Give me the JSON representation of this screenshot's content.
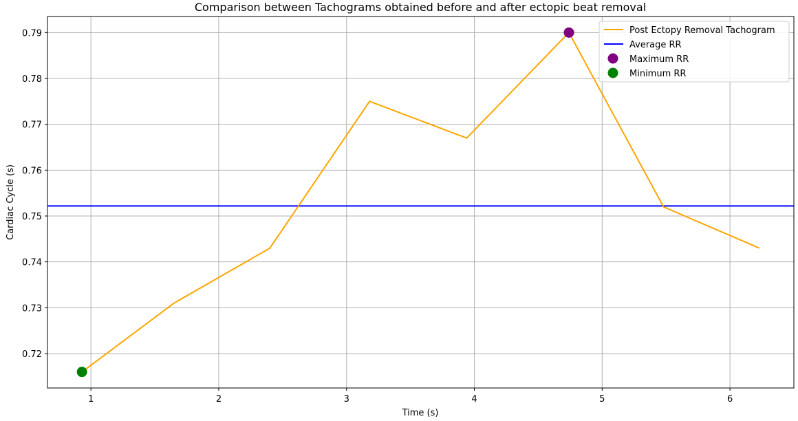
{
  "chart_data": {
    "type": "line",
    "title": "Comparison between Tachograms obtained before and after ectopic beat removal",
    "xlabel": "Time (s)",
    "ylabel": "Cardiac Cycle (s)",
    "xlim": [
      0.66,
      6.5
    ],
    "ylim": [
      0.7125,
      0.7935
    ],
    "xticks": [
      1,
      2,
      3,
      4,
      5,
      6
    ],
    "yticks": [
      0.72,
      0.73,
      0.74,
      0.75,
      0.76,
      0.77,
      0.78,
      0.79
    ],
    "grid": true,
    "legend_position": "top-right",
    "series": [
      {
        "name": "Post Ectopy Removal Tachogram",
        "kind": "line",
        "color": "#ffa500",
        "x": [
          0.93,
          1.65,
          2.4,
          3.18,
          3.94,
          4.74,
          5.48,
          6.23
        ],
        "y": [
          0.716,
          0.731,
          0.743,
          0.775,
          0.767,
          0.79,
          0.752,
          0.743
        ]
      },
      {
        "name": "Average RR",
        "kind": "hline",
        "color": "#0000ff",
        "y": 0.7522
      },
      {
        "name": "Maximum RR",
        "kind": "point",
        "color": "#800080",
        "x": 4.74,
        "y": 0.79
      },
      {
        "name": "Minimum RR",
        "kind": "point",
        "color": "#008000",
        "x": 0.93,
        "y": 0.716
      }
    ]
  }
}
